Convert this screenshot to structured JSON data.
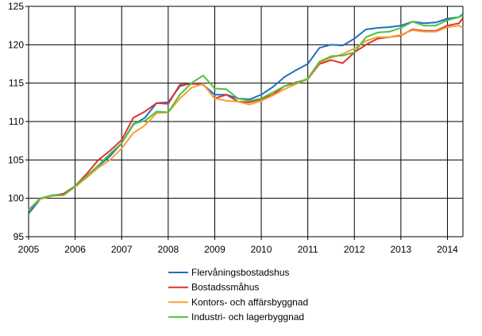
{
  "chart_data": {
    "type": "line",
    "title": "",
    "xlabel": "",
    "ylabel": "",
    "ylim": [
      95,
      125
    ],
    "yticks": [
      95,
      100,
      105,
      110,
      115,
      120,
      125
    ],
    "xticks": [
      "2005",
      "2006",
      "2007",
      "2008",
      "2009",
      "2010",
      "2011",
      "2012",
      "2013",
      "2014"
    ],
    "xrange": [
      "2005-01",
      "2014-05"
    ],
    "grid": true,
    "legend_position": "bottom",
    "x": [
      "2005-01",
      "2005-04",
      "2005-07",
      "2005-10",
      "2006-01",
      "2006-04",
      "2006-07",
      "2006-10",
      "2007-01",
      "2007-04",
      "2007-07",
      "2007-10",
      "2008-01",
      "2008-04",
      "2008-07",
      "2008-10",
      "2009-01",
      "2009-04",
      "2009-07",
      "2009-10",
      "2010-01",
      "2010-04",
      "2010-07",
      "2010-10",
      "2011-01",
      "2011-04",
      "2011-07",
      "2011-10",
      "2012-01",
      "2012-04",
      "2012-07",
      "2012-10",
      "2013-01",
      "2013-04",
      "2013-07",
      "2013-10",
      "2014-01",
      "2014-04",
      "2014-05"
    ],
    "series": [
      {
        "name": "Flervåningsbostadshus",
        "color": "#1f6fc0",
        "values": [
          98.0,
          99.9,
          100.4,
          100.5,
          101.5,
          102.8,
          104.2,
          105.5,
          107.2,
          109.6,
          110.5,
          112.4,
          112.5,
          114.6,
          115.0,
          114.8,
          113.5,
          113.5,
          113.0,
          112.9,
          113.5,
          114.5,
          115.8,
          116.7,
          117.5,
          119.6,
          120.0,
          119.9,
          120.8,
          122.0,
          122.2,
          122.3,
          122.5,
          123.0,
          122.8,
          122.9,
          123.4,
          123.6,
          124.0
        ]
      },
      {
        "name": "Bostadssmåhus",
        "color": "#e03232",
        "values": [
          98.4,
          100.0,
          100.3,
          100.6,
          101.6,
          103.2,
          105.0,
          106.2,
          107.6,
          110.5,
          111.3,
          112.4,
          112.3,
          114.8,
          114.9,
          114.9,
          113.0,
          113.5,
          112.6,
          112.5,
          112.9,
          113.5,
          114.6,
          115.1,
          115.5,
          117.5,
          118.0,
          117.6,
          119.0,
          120.0,
          120.8,
          121.0,
          121.2,
          122.0,
          121.8,
          121.8,
          122.5,
          122.8,
          123.5
        ]
      },
      {
        "name": "Kontors- och affärsbyggnad",
        "color": "#f7a030",
        "values": [
          98.5,
          99.9,
          100.3,
          100.4,
          101.5,
          102.7,
          104.0,
          105.0,
          106.5,
          108.5,
          109.5,
          111.1,
          111.2,
          113.0,
          114.4,
          114.9,
          113.0,
          112.7,
          112.6,
          112.2,
          112.7,
          113.4,
          114.2,
          114.9,
          115.5,
          117.7,
          118.3,
          118.8,
          119.5,
          120.5,
          121.0,
          121.0,
          121.3,
          121.9,
          121.7,
          121.7,
          122.3,
          122.5,
          122.2
        ]
      },
      {
        "name": "Industri- och lagerbyggnad",
        "color": "#50c040",
        "values": [
          98.5,
          100.0,
          100.4,
          100.4,
          101.6,
          102.9,
          104.3,
          105.8,
          107.2,
          109.7,
          110.1,
          111.3,
          111.2,
          113.5,
          115.0,
          116.0,
          114.3,
          114.2,
          113.0,
          112.7,
          113.0,
          113.8,
          114.6,
          115.0,
          115.6,
          117.8,
          118.5,
          118.6,
          119.0,
          121.0,
          121.6,
          121.7,
          122.2,
          123.0,
          122.5,
          122.5,
          123.2,
          123.6,
          123.8
        ]
      }
    ]
  }
}
